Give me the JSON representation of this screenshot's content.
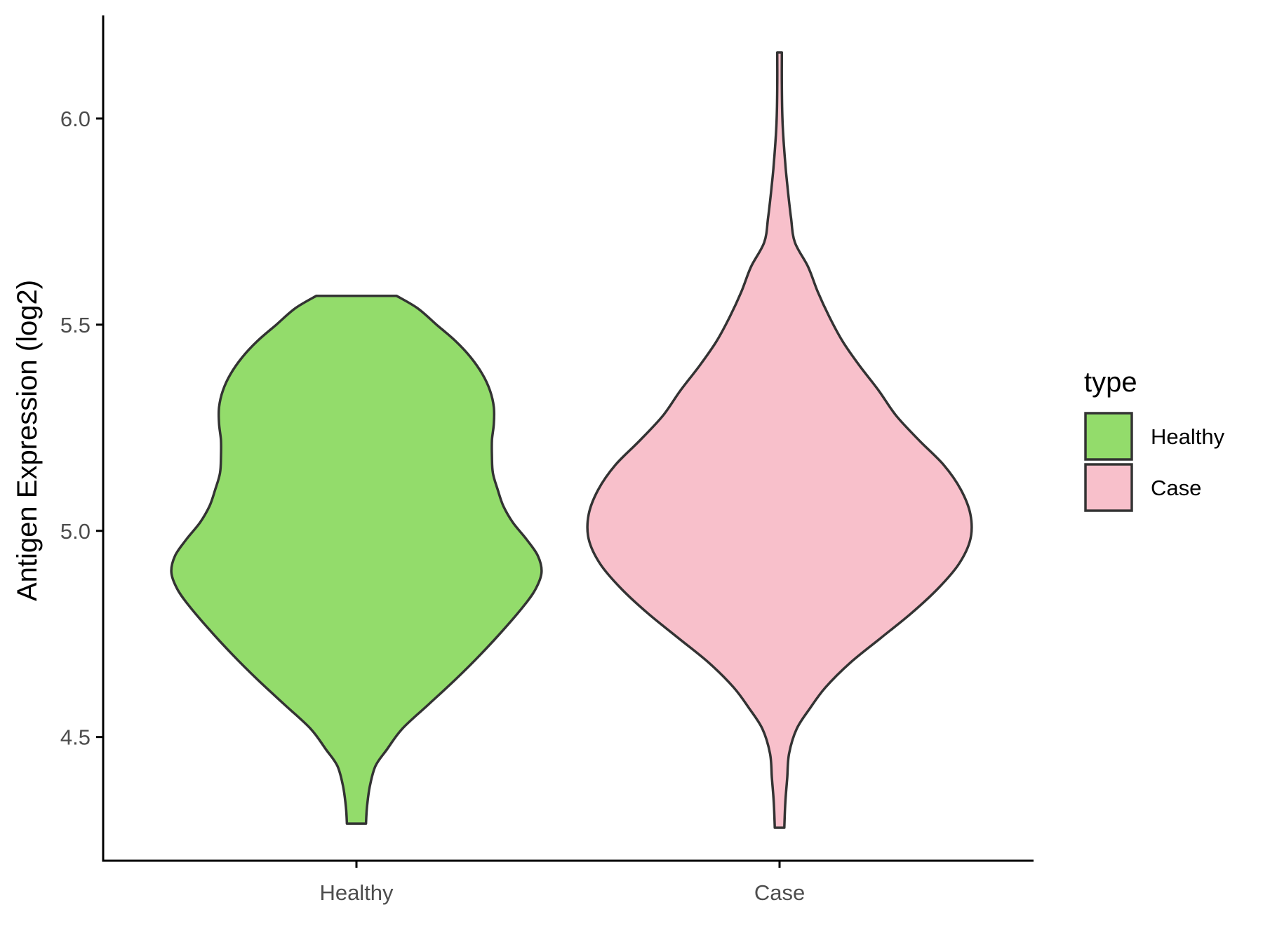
{
  "chart_data": {
    "type": "violin",
    "ylabel": "Antigen Expression (log2)",
    "xlabel": "",
    "ylim": [
      4.2,
      6.25
    ],
    "yticks": [
      4.5,
      5.0,
      5.5,
      6.0
    ],
    "ytick_labels": [
      "4.5",
      "5.0",
      "5.5",
      "6.0"
    ],
    "categories": [
      "Healthy",
      "Case"
    ],
    "legend": {
      "title": "type",
      "position": "right",
      "entries": [
        "Healthy",
        "Case"
      ]
    },
    "colors": {
      "Healthy": "#93dc6b",
      "Case": "#f8c0cb",
      "outline": "#333333",
      "axis": "#000000"
    },
    "series": [
      {
        "category": "Healthy",
        "min": 4.29,
        "max": 5.57,
        "profile": [
          [
            4.29,
            0.05
          ],
          [
            4.33,
            0.055
          ],
          [
            4.38,
            0.07
          ],
          [
            4.43,
            0.1
          ],
          [
            4.47,
            0.16
          ],
          [
            4.52,
            0.24
          ],
          [
            4.58,
            0.38
          ],
          [
            4.64,
            0.52
          ],
          [
            4.7,
            0.65
          ],
          [
            4.76,
            0.77
          ],
          [
            4.82,
            0.88
          ],
          [
            4.86,
            0.94
          ],
          [
            4.9,
            0.97
          ],
          [
            4.94,
            0.95
          ],
          [
            4.98,
            0.89
          ],
          [
            5.02,
            0.82
          ],
          [
            5.06,
            0.77
          ],
          [
            5.1,
            0.74
          ],
          [
            5.14,
            0.715
          ],
          [
            5.18,
            0.71
          ],
          [
            5.22,
            0.71
          ],
          [
            5.26,
            0.72
          ],
          [
            5.3,
            0.72
          ],
          [
            5.34,
            0.7
          ],
          [
            5.38,
            0.66
          ],
          [
            5.42,
            0.6
          ],
          [
            5.46,
            0.52
          ],
          [
            5.5,
            0.42
          ],
          [
            5.54,
            0.32
          ],
          [
            5.57,
            0.21
          ]
        ]
      },
      {
        "category": "Case",
        "min": 4.28,
        "max": 6.16,
        "profile": [
          [
            4.28,
            0.025
          ],
          [
            4.34,
            0.03
          ],
          [
            4.4,
            0.04
          ],
          [
            4.46,
            0.05
          ],
          [
            4.52,
            0.09
          ],
          [
            4.57,
            0.16
          ],
          [
            4.62,
            0.24
          ],
          [
            4.68,
            0.37
          ],
          [
            4.74,
            0.53
          ],
          [
            4.8,
            0.69
          ],
          [
            4.86,
            0.83
          ],
          [
            4.92,
            0.94
          ],
          [
            4.98,
            1.0
          ],
          [
            5.04,
            1.0
          ],
          [
            5.1,
            0.95
          ],
          [
            5.16,
            0.86
          ],
          [
            5.22,
            0.73
          ],
          [
            5.28,
            0.61
          ],
          [
            5.34,
            0.52
          ],
          [
            5.4,
            0.42
          ],
          [
            5.46,
            0.33
          ],
          [
            5.52,
            0.26
          ],
          [
            5.58,
            0.2
          ],
          [
            5.64,
            0.15
          ],
          [
            5.7,
            0.08
          ],
          [
            5.76,
            0.06
          ],
          [
            5.82,
            0.045
          ],
          [
            5.88,
            0.032
          ],
          [
            5.94,
            0.022
          ],
          [
            6.0,
            0.015
          ],
          [
            6.08,
            0.012
          ],
          [
            6.16,
            0.012
          ]
        ]
      }
    ]
  }
}
